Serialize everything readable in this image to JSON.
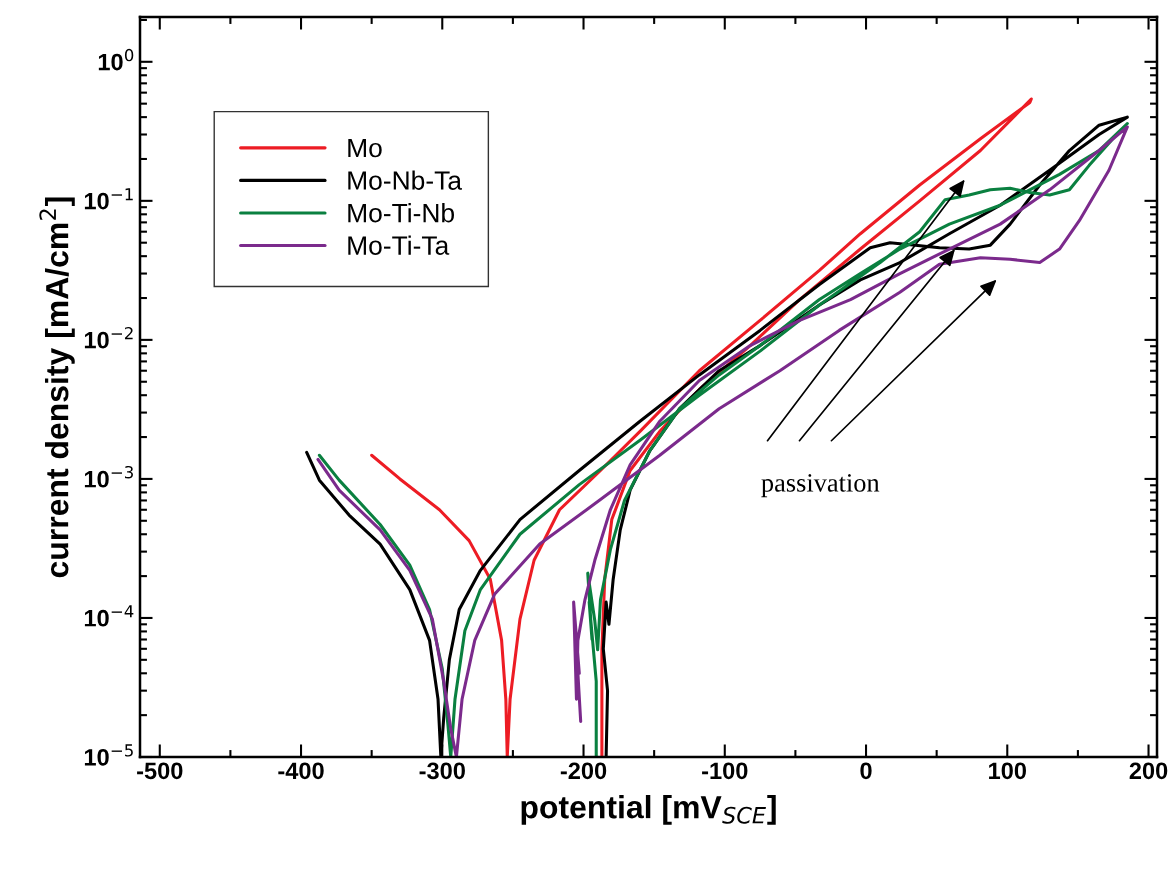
{
  "chart_data": {
    "type": "line",
    "xlabel": "potential [mV$_{SCE}$]",
    "ylabel": "current density [mA/cm$^{2}$]",
    "xlim": [
      -514,
      206
    ],
    "ylim": [
      1e-05,
      2.1
    ],
    "log": "y",
    "legend": "top left",
    "grid": false,
    "line_style": "solid",
    "marker": "none",
    "xticks": [
      -500,
      -400,
      -300,
      -200,
      -100,
      0,
      100,
      200
    ],
    "yticks": [
      {
        "value": 1e-05,
        "label": "10$^{−5}$"
      },
      {
        "value": 0.0001,
        "label": "10$^{−4}$"
      },
      {
        "value": 0.001,
        "label": "10$^{−3}$"
      },
      {
        "value": 0.01,
        "label": "10$^{−2}$"
      },
      {
        "value": 0.1,
        "label": "10$^{−1}$"
      },
      {
        "value": 1,
        "label": "10$^{0}$"
      }
    ],
    "annotations": [
      {
        "text": "passivation",
        "x": 63,
        "y": 0.045
      }
    ],
    "series": [
      {
        "name": "Mo",
        "color": "#ed1c24",
        "x": [
          -350,
          -330,
          -302,
          -281,
          -266,
          -258,
          -255,
          -254,
          -252,
          -245,
          -235,
          -217,
          -188,
          -160,
          -118,
          -75,
          -33,
          -4,
          38,
          81,
          116,
          117,
          81,
          38,
          -4,
          -47,
          -82,
          -118,
          -146,
          -167,
          -180,
          -185,
          -187,
          -187
        ],
        "values": [
          0.00148,
          0.001,
          0.0006,
          0.00036,
          0.00019,
          6.9e-05,
          2.6e-05,
          1e-05,
          2.6e-05,
          9.8e-05,
          0.00026,
          0.0006,
          0.00115,
          0.0022,
          0.006,
          0.0138,
          0.0316,
          0.058,
          0.13,
          0.28,
          0.51,
          0.54,
          0.23,
          0.1,
          0.045,
          0.0195,
          0.0091,
          0.0044,
          0.0022,
          0.00115,
          0.00051,
          0.00019,
          5.9e-05,
          1e-05
        ]
      },
      {
        "name": "Mo-Nb-Ta",
        "color": "#000000",
        "x": [
          -396,
          -387,
          -366,
          -344,
          -323,
          -309,
          -303,
          -301,
          -299,
          -295,
          -288,
          -273,
          -245,
          -203,
          -160,
          -118,
          -75,
          -33,
          3,
          17,
          35,
          52,
          73,
          88,
          102,
          123,
          144,
          165,
          185,
          165,
          130,
          95,
          59,
          24,
          -4,
          -33,
          -75,
          -104,
          -132,
          -153,
          -167,
          -174,
          -179,
          -182,
          -184,
          -186,
          -183,
          -184
        ],
        "values": [
          0.00155,
          0.00098,
          0.00055,
          0.00034,
          0.00016,
          6.9e-05,
          2.6e-05,
          1e-05,
          1.9e-05,
          5e-05,
          0.000115,
          0.00022,
          0.00051,
          0.00115,
          0.0026,
          0.0056,
          0.0117,
          0.025,
          0.046,
          0.05,
          0.048,
          0.046,
          0.045,
          0.048,
          0.068,
          0.13,
          0.23,
          0.35,
          0.4,
          0.3,
          0.166,
          0.093,
          0.058,
          0.036,
          0.027,
          0.0178,
          0.0091,
          0.006,
          0.0032,
          0.0016,
          0.00083,
          0.00043,
          0.00019,
          9e-05,
          0.00013,
          6e-05,
          3e-05,
          1e-05
        ]
      },
      {
        "name": "Mo-Ti-Nb",
        "color": "#0a8040",
        "x": [
          -387,
          -373,
          -344,
          -323,
          -309,
          -300,
          -296,
          -294,
          -291,
          -284,
          -273,
          -245,
          -203,
          -160,
          -118,
          -75,
          -33,
          10,
          38,
          56,
          73,
          88,
          102,
          116,
          130,
          144,
          158,
          180,
          185,
          165,
          137,
          95,
          59,
          24,
          -4,
          -33,
          -75,
          -104,
          -132,
          -153,
          -171,
          -181,
          -188,
          -190,
          -192,
          -197,
          -194,
          -196,
          -191,
          -191
        ],
        "values": [
          0.00148,
          0.00098,
          0.00047,
          0.00024,
          0.000115,
          4.3e-05,
          1.7e-05,
          1e-05,
          2.6e-05,
          8.1e-05,
          0.00016,
          0.0004,
          0.00091,
          0.0019,
          0.004,
          0.0083,
          0.0178,
          0.036,
          0.06,
          0.102,
          0.11,
          0.12,
          0.123,
          0.115,
          0.11,
          0.12,
          0.18,
          0.32,
          0.36,
          0.23,
          0.155,
          0.093,
          0.068,
          0.045,
          0.03,
          0.0195,
          0.0091,
          0.0056,
          0.0032,
          0.0016,
          0.0007,
          0.00031,
          0.000135,
          5.9e-05,
          9.5e-05,
          0.00021,
          7e-05,
          0.00013,
          3.5e-05,
          1e-05
        ]
      },
      {
        "name": "Mo-Ti-Ta",
        "color": "#7b2a8c",
        "x": [
          -388,
          -373,
          -344,
          -323,
          -307,
          -299,
          -294,
          -290,
          -286,
          -277,
          -263,
          -231,
          -188,
          -146,
          -104,
          -61,
          -19,
          24,
          52,
          81,
          102,
          123,
          137,
          151,
          172,
          185,
          165,
          130,
          95,
          59,
          24,
          -11,
          -47,
          -82,
          -118,
          -146,
          -167,
          -181,
          -192,
          -199,
          -204,
          -205,
          -207,
          -203,
          -206,
          -202
        ],
        "values": [
          0.00138,
          0.00083,
          0.00043,
          0.00022,
          9.8e-05,
          3.5e-05,
          1.6e-05,
          1e-05,
          2.6e-05,
          6.9e-05,
          0.000148,
          0.00034,
          0.00071,
          0.00148,
          0.0032,
          0.006,
          0.0117,
          0.022,
          0.035,
          0.039,
          0.038,
          0.036,
          0.045,
          0.072,
          0.166,
          0.34,
          0.23,
          0.12,
          0.068,
          0.045,
          0.03,
          0.0195,
          0.0138,
          0.0091,
          0.0051,
          0.0026,
          0.00126,
          0.0006,
          0.00026,
          0.000135,
          6.9e-05,
          2.6e-05,
          0.00013,
          4e-05,
          9e-05,
          1.8e-05
        ]
      }
    ]
  }
}
